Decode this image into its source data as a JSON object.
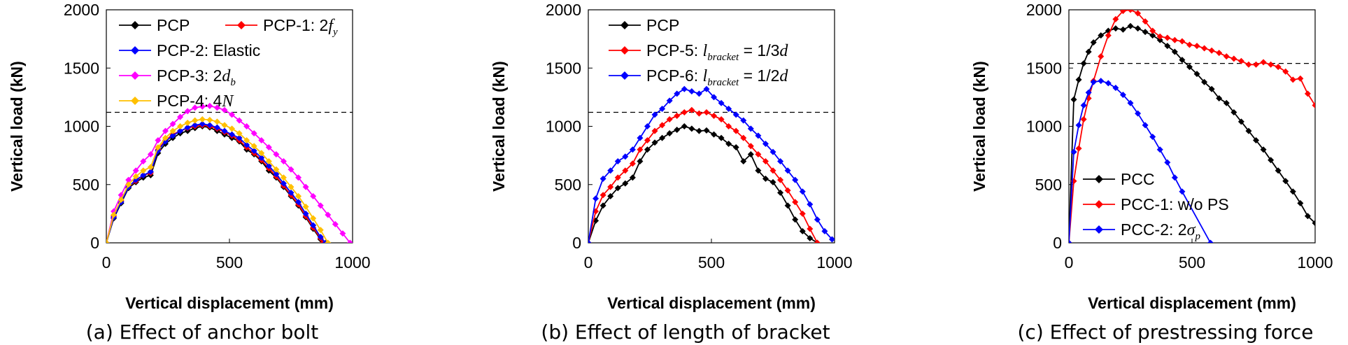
{
  "chart_data": [
    {
      "type": "line",
      "caption": "(a) Effect of anchor bolt",
      "xlabel": "Vertical displacement (mm)",
      "ylabel": "Vertical load (kN)",
      "xlim": [
        0,
        1000
      ],
      "ylim": [
        0,
        2000
      ],
      "xticks": [
        "0",
        "500",
        "1000"
      ],
      "yticks": [
        "0",
        "500",
        "1000",
        "1500",
        "2000"
      ],
      "reference_line": 1120,
      "legend_layout": "two-column-top",
      "series": [
        {
          "name": "PCP",
          "color": "#000000",
          "x": [
            0,
            30,
            60,
            90,
            120,
            150,
            180,
            210,
            240,
            270,
            300,
            330,
            360,
            390,
            420,
            450,
            480,
            510,
            540,
            570,
            600,
            630,
            660,
            690,
            720,
            750,
            780,
            810,
            840,
            870,
            880
          ],
          "y": [
            0,
            210,
            340,
            470,
            520,
            560,
            580,
            770,
            850,
            900,
            940,
            960,
            985,
            1000,
            990,
            960,
            930,
            900,
            870,
            800,
            760,
            700,
            620,
            560,
            480,
            400,
            320,
            220,
            120,
            30,
            0
          ]
        },
        {
          "name": "PCP-1: 2",
          "name_italic": "f",
          "name_sub": "y",
          "color": "#ff0000",
          "x": [
            0,
            30,
            60,
            90,
            120,
            150,
            180,
            210,
            240,
            270,
            300,
            330,
            360,
            390,
            420,
            450,
            480,
            510,
            540,
            570,
            600,
            630,
            660,
            690,
            720,
            750,
            780,
            810,
            840,
            870,
            880
          ],
          "y": [
            0,
            230,
            360,
            480,
            530,
            580,
            600,
            800,
            880,
            930,
            960,
            985,
            1000,
            1010,
            1000,
            980,
            950,
            920,
            880,
            820,
            770,
            710,
            640,
            570,
            490,
            410,
            330,
            230,
            130,
            40,
            0
          ]
        },
        {
          "name": "PCP-2: Elastic",
          "color": "#0000ff",
          "x": [
            0,
            30,
            60,
            90,
            120,
            150,
            180,
            210,
            240,
            270,
            300,
            330,
            360,
            390,
            420,
            450,
            480,
            510,
            540,
            570,
            600,
            630,
            660,
            690,
            720,
            750,
            780,
            810,
            840,
            870,
            890
          ],
          "y": [
            0,
            220,
            350,
            480,
            540,
            580,
            610,
            790,
            870,
            920,
            960,
            990,
            1010,
            1020,
            1010,
            990,
            960,
            930,
            900,
            840,
            790,
            730,
            660,
            590,
            510,
            430,
            350,
            250,
            150,
            50,
            0
          ]
        },
        {
          "name": "PCP-3: 2",
          "name_italic": "d",
          "name_sub": "b",
          "color": "#ff00ff",
          "x": [
            0,
            30,
            60,
            90,
            120,
            150,
            180,
            210,
            240,
            270,
            300,
            330,
            360,
            390,
            420,
            450,
            480,
            510,
            540,
            570,
            600,
            630,
            660,
            690,
            720,
            750,
            780,
            810,
            840,
            870,
            900,
            930,
            960,
            990
          ],
          "y": [
            0,
            270,
            410,
            540,
            620,
            700,
            760,
            880,
            960,
            1020,
            1080,
            1130,
            1160,
            1170,
            1175,
            1160,
            1140,
            1100,
            1050,
            1000,
            940,
            880,
            820,
            760,
            700,
            630,
            560,
            480,
            400,
            320,
            240,
            160,
            80,
            0
          ]
        },
        {
          "name": "PCP-4: 4",
          "name_italic": "N",
          "color": "#ffc000",
          "x": [
            0,
            30,
            60,
            90,
            120,
            150,
            180,
            210,
            240,
            270,
            300,
            330,
            360,
            390,
            420,
            450,
            480,
            510,
            540,
            570,
            600,
            630,
            660,
            690,
            720,
            750,
            780,
            810,
            840,
            870,
            900
          ],
          "y": [
            0,
            240,
            370,
            500,
            570,
            620,
            650,
            820,
            900,
            960,
            1000,
            1030,
            1050,
            1060,
            1055,
            1040,
            1010,
            980,
            940,
            880,
            830,
            770,
            700,
            630,
            560,
            480,
            400,
            310,
            210,
            110,
            0
          ]
        }
      ]
    },
    {
      "type": "line",
      "caption": "(b) Effect of length of bracket",
      "xlabel": "Vertical displacement (mm)",
      "ylabel": "Vertical load (kN)",
      "xlim": [
        0,
        1000
      ],
      "ylim": [
        0,
        2000
      ],
      "xticks": [
        "0",
        "500",
        "1000"
      ],
      "yticks": [
        "0",
        "500",
        "1000",
        "1500",
        "2000"
      ],
      "reference_line": 1120,
      "legend_layout": "top-left",
      "series": [
        {
          "name": "PCP",
          "color": "#000000",
          "x": [
            0,
            30,
            60,
            90,
            120,
            150,
            180,
            210,
            240,
            270,
            300,
            330,
            360,
            390,
            420,
            450,
            480,
            510,
            540,
            570,
            600,
            630,
            660,
            690,
            720,
            750,
            780,
            810,
            840,
            870,
            900,
            930
          ],
          "y": [
            0,
            190,
            320,
            400,
            470,
            510,
            560,
            700,
            800,
            860,
            900,
            940,
            970,
            1000,
            980,
            960,
            965,
            930,
            900,
            850,
            820,
            700,
            760,
            620,
            550,
            520,
            430,
            320,
            200,
            100,
            40,
            0
          ]
        },
        {
          "name": "PCP-5: ",
          "name_italic": "l",
          "name_sub": "bracket",
          "name_tail": " = 1/3",
          "name_tail_italic": "d",
          "color": "#ff0000",
          "x": [
            0,
            30,
            60,
            90,
            120,
            150,
            180,
            210,
            240,
            270,
            300,
            330,
            360,
            390,
            420,
            450,
            480,
            510,
            540,
            570,
            600,
            630,
            660,
            690,
            720,
            750,
            780,
            810,
            840,
            870,
            900,
            930
          ],
          "y": [
            0,
            270,
            410,
            480,
            560,
            620,
            680,
            800,
            880,
            960,
            1010,
            1060,
            1090,
            1120,
            1140,
            1110,
            1120,
            1090,
            1060,
            1000,
            960,
            900,
            830,
            760,
            700,
            620,
            540,
            450,
            350,
            250,
            120,
            0
          ]
        },
        {
          "name": "PCP-6: ",
          "name_italic": "l",
          "name_sub": "bracket",
          "name_tail": " = 1/2",
          "name_tail_italic": "d",
          "color": "#0000ff",
          "x": [
            0,
            30,
            60,
            90,
            120,
            150,
            180,
            210,
            240,
            270,
            300,
            330,
            360,
            390,
            420,
            450,
            480,
            510,
            540,
            570,
            600,
            630,
            660,
            690,
            720,
            750,
            780,
            810,
            840,
            870,
            900,
            930,
            960,
            990
          ],
          "y": [
            0,
            380,
            550,
            620,
            700,
            740,
            800,
            900,
            1000,
            1100,
            1150,
            1220,
            1280,
            1320,
            1300,
            1280,
            1320,
            1250,
            1200,
            1150,
            1100,
            1050,
            980,
            920,
            850,
            780,
            700,
            620,
            540,
            440,
            330,
            200,
            100,
            30
          ]
        }
      ]
    },
    {
      "type": "line",
      "caption": "(c) Effect of prestressing force",
      "xlabel": "Vertical displacement (mm)",
      "ylabel": "Vertical load (kN)",
      "xlim": [
        0,
        1000
      ],
      "ylim": [
        0,
        2000
      ],
      "xticks": [
        "0",
        "500",
        "1000"
      ],
      "yticks": [
        "0",
        "500",
        "1000",
        "1500",
        "2000"
      ],
      "reference_line": 1540,
      "legend_layout": "bottom-left",
      "series": [
        {
          "name": "PCC",
          "color": "#000000",
          "x": [
            0,
            20,
            40,
            60,
            80,
            100,
            130,
            160,
            190,
            220,
            250,
            280,
            310,
            340,
            370,
            400,
            430,
            460,
            490,
            520,
            550,
            580,
            610,
            640,
            670,
            700,
            730,
            760,
            790,
            820,
            850,
            880,
            910,
            940,
            970,
            1000
          ],
          "y": [
            0,
            1230,
            1400,
            1540,
            1640,
            1720,
            1780,
            1820,
            1840,
            1830,
            1860,
            1840,
            1810,
            1780,
            1740,
            1690,
            1640,
            1570,
            1510,
            1450,
            1380,
            1320,
            1240,
            1200,
            1120,
            1040,
            960,
            880,
            800,
            710,
            620,
            530,
            440,
            340,
            230,
            170
          ]
        },
        {
          "name": "PCC-1: w/o PS",
          "color": "#ff0000",
          "x": [
            0,
            20,
            40,
            60,
            80,
            100,
            130,
            160,
            190,
            220,
            250,
            280,
            310,
            340,
            370,
            400,
            430,
            460,
            490,
            520,
            550,
            580,
            610,
            640,
            670,
            700,
            730,
            760,
            790,
            820,
            850,
            880,
            910,
            940,
            970,
            1000
          ],
          "y": [
            0,
            530,
            810,
            1060,
            1240,
            1390,
            1600,
            1780,
            1920,
            1990,
            2000,
            1970,
            1900,
            1820,
            1770,
            1760,
            1740,
            1730,
            1700,
            1690,
            1670,
            1650,
            1630,
            1600,
            1580,
            1560,
            1530,
            1530,
            1550,
            1530,
            1510,
            1470,
            1400,
            1410,
            1280,
            1180
          ]
        },
        {
          "name": "PCC-2: 2",
          "name_italic": "σ",
          "name_sub": "p",
          "color": "#0000ff",
          "x": [
            0,
            20,
            40,
            60,
            80,
            100,
            130,
            160,
            190,
            220,
            250,
            280,
            310,
            340,
            370,
            400,
            430,
            460,
            575
          ],
          "y": [
            0,
            780,
            1010,
            1180,
            1290,
            1380,
            1390,
            1370,
            1330,
            1270,
            1200,
            1110,
            1010,
            910,
            800,
            690,
            560,
            440,
            0
          ]
        }
      ]
    }
  ]
}
